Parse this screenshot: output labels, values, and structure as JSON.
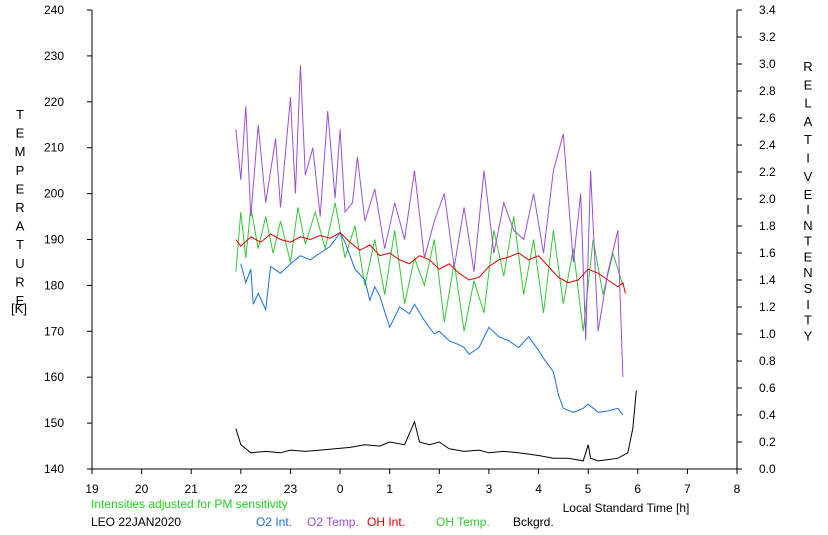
{
  "chart_data": {
    "type": "line",
    "title": "",
    "left_axis": {
      "label_letters": [
        "T",
        "E",
        "M",
        "P",
        "E",
        "R",
        "A",
        "T",
        "U",
        "R",
        "E"
      ],
      "unit": "[K]",
      "range": [
        140,
        240
      ],
      "ticks": [
        "140",
        "150",
        "160",
        "170",
        "180",
        "190",
        "200",
        "210",
        "220",
        "230",
        "240"
      ]
    },
    "right_axis": {
      "label_letters_1": [
        "R",
        "E",
        "L",
        "A",
        "T",
        "I",
        "V",
        "E"
      ],
      "label_letters_2": [
        "I",
        "N",
        "T",
        "E",
        "N",
        "S",
        "I",
        "T",
        "Y"
      ],
      "range": [
        0.0,
        3.4
      ],
      "ticks": [
        "0.0",
        "0.2",
        "0.4",
        "0.6",
        "0.8",
        "1.0",
        "1.2",
        "1.4",
        "1.6",
        "1.8",
        "2.0",
        "2.2",
        "2.4",
        "2.6",
        "2.8",
        "3.0",
        "3.2",
        "3.4"
      ]
    },
    "x_axis": {
      "label": "Local Standard Time [h]",
      "range": [
        19,
        32
      ],
      "ticks": [
        "19",
        "20",
        "21",
        "22",
        "23",
        "0",
        "1",
        "2",
        "3",
        "4",
        "5",
        "6",
        "7",
        "8"
      ]
    },
    "note": "Intensities adjusted for PM sensitivity",
    "station": "LEO 22JAN2020",
    "colors": {
      "o2_int": "#1a6fdc",
      "o2_temp": "#9b4fd6",
      "oh_int": "#e00000",
      "oh_temp": "#36c436",
      "bckgrd": "#000000",
      "note": "#22cc22"
    },
    "series": [
      {
        "name": "O2 Int.",
        "axis": "right",
        "x": [
          22.0,
          22.1,
          22.2,
          22.25,
          22.35,
          22.5,
          22.6,
          22.8,
          23.0,
          23.2,
          23.4,
          23.6,
          23.8,
          24.0,
          24.1,
          24.2,
          24.3,
          24.5,
          24.6,
          24.7,
          24.8,
          25.0,
          25.2,
          25.4,
          25.5,
          25.7,
          25.9,
          26.0,
          26.2,
          26.4,
          26.5,
          26.6,
          26.8,
          27.0,
          27.2,
          27.4,
          27.6,
          27.8,
          28.0,
          28.1,
          28.3,
          28.4,
          28.5,
          28.7,
          28.9,
          29.0,
          29.2,
          29.4,
          29.6,
          29.7
        ],
        "y": [
          1.52,
          1.38,
          1.48,
          1.22,
          1.3,
          1.18,
          1.5,
          1.45,
          1.52,
          1.58,
          1.55,
          1.6,
          1.65,
          1.75,
          1.68,
          1.58,
          1.48,
          1.4,
          1.25,
          1.35,
          1.28,
          1.05,
          1.2,
          1.15,
          1.22,
          1.1,
          1.0,
          1.02,
          0.95,
          0.92,
          0.9,
          0.85,
          0.9,
          1.05,
          0.98,
          0.95,
          0.9,
          0.98,
          0.88,
          0.82,
          0.72,
          0.55,
          0.45,
          0.42,
          0.45,
          0.48,
          0.42,
          0.43,
          0.45,
          0.4
        ]
      },
      {
        "name": "O2 Temp.",
        "axis": "left",
        "x": [
          21.9,
          22.0,
          22.1,
          22.2,
          22.35,
          22.5,
          22.7,
          22.8,
          23.0,
          23.1,
          23.2,
          23.3,
          23.45,
          23.6,
          23.75,
          23.9,
          24.0,
          24.1,
          24.25,
          24.35,
          24.5,
          24.7,
          24.9,
          25.1,
          25.3,
          25.5,
          25.7,
          25.9,
          26.1,
          26.3,
          26.5,
          26.7,
          26.9,
          27.1,
          27.3,
          27.5,
          27.7,
          27.9,
          28.1,
          28.3,
          28.5,
          28.7,
          28.85,
          28.95,
          29.05,
          29.2,
          29.4,
          29.6,
          29.7
        ],
        "y": [
          214,
          203,
          219,
          195,
          215,
          198,
          212,
          197,
          221,
          200,
          228,
          204,
          210,
          195,
          218,
          199,
          214,
          196,
          198,
          208,
          194,
          201,
          188,
          198,
          190,
          205,
          186,
          194,
          200,
          184,
          197,
          183,
          205,
          187,
          198,
          192,
          190,
          200,
          187,
          205,
          213,
          185,
          200,
          168,
          205,
          170,
          183,
          192,
          160
        ]
      },
      {
        "name": "OH Int.",
        "axis": "right",
        "x": [
          21.9,
          22.0,
          22.2,
          22.4,
          22.6,
          22.8,
          23.0,
          23.2,
          23.4,
          23.6,
          23.8,
          24.0,
          24.2,
          24.4,
          24.6,
          24.8,
          25.0,
          25.2,
          25.4,
          25.6,
          25.8,
          26.0,
          26.2,
          26.4,
          26.6,
          26.8,
          27.0,
          27.2,
          27.4,
          27.6,
          27.8,
          28.0,
          28.2,
          28.4,
          28.6,
          28.8,
          29.0,
          29.2,
          29.4,
          29.6,
          29.7,
          29.75
        ],
        "y": [
          1.7,
          1.65,
          1.72,
          1.68,
          1.74,
          1.7,
          1.68,
          1.72,
          1.7,
          1.73,
          1.71,
          1.75,
          1.68,
          1.62,
          1.66,
          1.58,
          1.6,
          1.55,
          1.52,
          1.58,
          1.55,
          1.48,
          1.52,
          1.45,
          1.4,
          1.42,
          1.5,
          1.55,
          1.57,
          1.6,
          1.55,
          1.58,
          1.5,
          1.42,
          1.38,
          1.4,
          1.48,
          1.45,
          1.4,
          1.35,
          1.38,
          1.3
        ]
      },
      {
        "name": "OH Temp.",
        "axis": "left",
        "x": [
          21.9,
          22.0,
          22.1,
          22.2,
          22.35,
          22.5,
          22.65,
          22.8,
          23.0,
          23.15,
          23.3,
          23.5,
          23.7,
          23.9,
          24.1,
          24.3,
          24.5,
          24.7,
          24.9,
          25.1,
          25.3,
          25.5,
          25.7,
          25.9,
          26.1,
          26.3,
          26.5,
          26.7,
          26.9,
          27.1,
          27.3,
          27.5,
          27.7,
          27.9,
          28.1,
          28.3,
          28.5,
          28.7,
          28.9,
          29.1,
          29.3,
          29.5,
          29.7
        ],
        "y": [
          183,
          196,
          186,
          197,
          188,
          195,
          187,
          194,
          185,
          197,
          189,
          196,
          188,
          198,
          186,
          193,
          180,
          190,
          178,
          192,
          176,
          186,
          180,
          190,
          172,
          185,
          170,
          181,
          174,
          192,
          182,
          195,
          178,
          190,
          174,
          192,
          176,
          188,
          170,
          190,
          178,
          187,
          180
        ]
      },
      {
        "name": "Bckgrd.",
        "axis": "right",
        "x": [
          21.9,
          22.0,
          22.2,
          22.5,
          22.8,
          23.0,
          23.3,
          23.6,
          23.9,
          24.2,
          24.5,
          24.8,
          25.0,
          25.3,
          25.5,
          25.6,
          25.8,
          26.0,
          26.2,
          26.5,
          26.8,
          27.0,
          27.3,
          27.6,
          28.0,
          28.3,
          28.6,
          28.9,
          29.0,
          29.05,
          29.2,
          29.4,
          29.6,
          29.8,
          29.9,
          29.97
        ],
        "y": [
          0.3,
          0.18,
          0.12,
          0.13,
          0.12,
          0.14,
          0.13,
          0.14,
          0.15,
          0.16,
          0.18,
          0.17,
          0.2,
          0.18,
          0.35,
          0.2,
          0.18,
          0.2,
          0.15,
          0.13,
          0.14,
          0.12,
          0.13,
          0.12,
          0.1,
          0.08,
          0.08,
          0.06,
          0.18,
          0.08,
          0.06,
          0.07,
          0.08,
          0.12,
          0.3,
          0.58
        ]
      }
    ]
  }
}
